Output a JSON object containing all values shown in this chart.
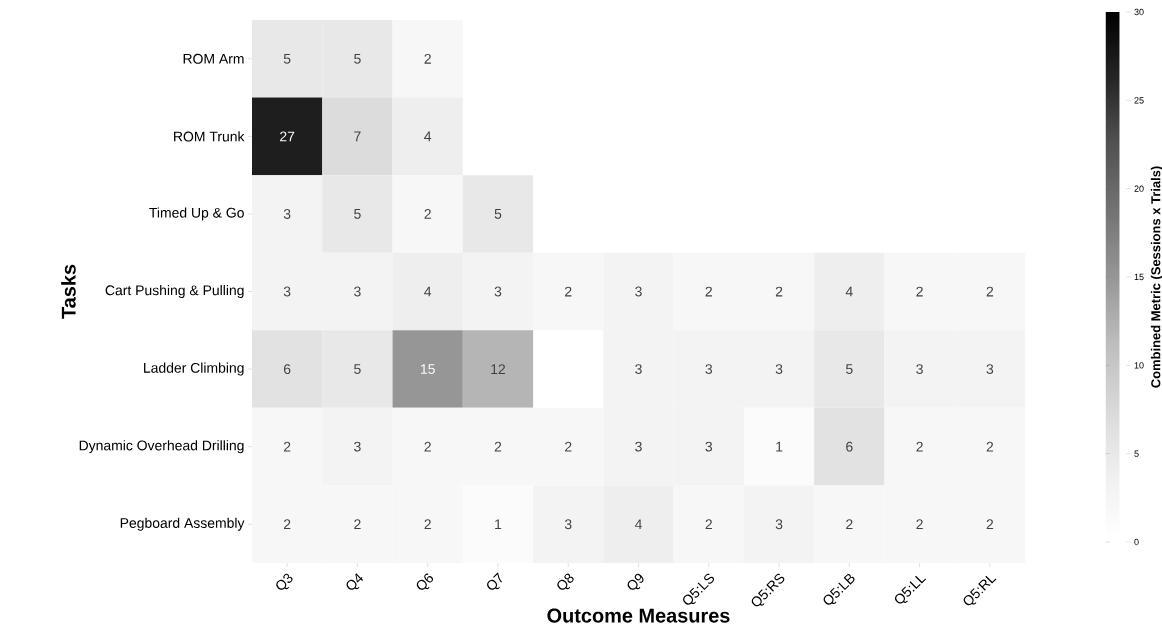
{
  "chart_data": {
    "type": "heatmap",
    "xlabel": "Outcome Measures",
    "ylabel": "Tasks",
    "clabel": "Combined Metric (Sessions x Trials)",
    "categories": [
      "Q3",
      "Q4",
      "Q6",
      "Q7",
      "Q8",
      "Q9",
      "Q5:LS",
      "Q5:RS",
      "Q5:LB",
      "Q5:LL",
      "Q5:RL"
    ],
    "y_categories": [
      "ROM Arm",
      "ROM Trunk",
      "Timed Up & Go",
      "Cart Pushing & Pulling",
      "Ladder Climbing",
      "Dynamic Overhead Drilling",
      "Pegboard Assembly"
    ],
    "cells": [
      [
        5,
        5,
        2,
        null,
        null,
        null,
        null,
        null,
        null,
        null,
        null
      ],
      [
        27,
        7,
        4,
        null,
        null,
        null,
        null,
        null,
        null,
        null,
        null
      ],
      [
        3,
        5,
        2,
        5,
        null,
        null,
        null,
        null,
        null,
        null,
        null
      ],
      [
        3,
        3,
        4,
        3,
        2,
        3,
        2,
        2,
        4,
        2,
        2
      ],
      [
        6,
        5,
        15,
        12,
        null,
        3,
        3,
        3,
        5,
        3,
        3
      ],
      [
        2,
        3,
        2,
        2,
        2,
        3,
        3,
        1,
        6,
        2,
        2
      ],
      [
        2,
        2,
        2,
        1,
        3,
        4,
        2,
        3,
        2,
        2,
        2
      ]
    ],
    "clim": [
      0,
      30
    ],
    "cticks": [
      0,
      5,
      10,
      15,
      20,
      25,
      30
    ],
    "data_labels": true
  }
}
